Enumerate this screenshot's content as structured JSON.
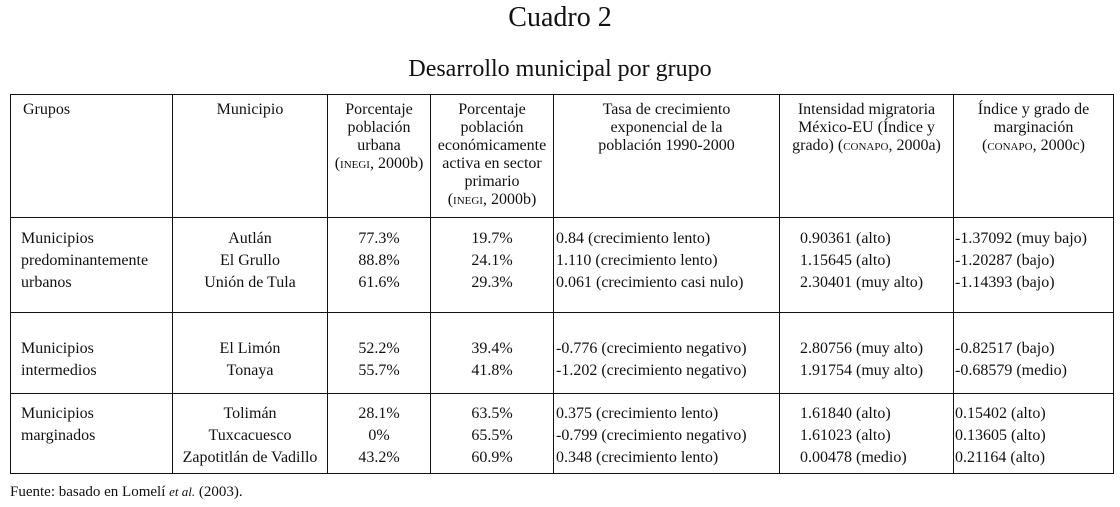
{
  "title": "Cuadro 2",
  "subtitle": "Desarrollo municipal por grupo",
  "headers": {
    "grupos": "Grupos",
    "municipio": "Municipio",
    "urbana": {
      "l1": "Porcentaje",
      "l2": "población",
      "l3": "urbana",
      "src_open": "(",
      "src": "INEGI",
      "src_rest": ", 2000b)"
    },
    "pea": {
      "l1": "Porcentaje",
      "l2": "población",
      "l3": "económicamente",
      "l4": "activa en sector",
      "l5": "primario",
      "src_open": "(",
      "src": "INEGI",
      "src_rest": ", 2000b)"
    },
    "tasa": {
      "l1": "Tasa de crecimiento",
      "l2": "exponencial de la",
      "l3": "población 1990-2000"
    },
    "intensidad": {
      "l1": "Intensidad migratoria",
      "l2": "México-EU (Índice y",
      "l3": "grado) (",
      "src": "CONAPO",
      "src_rest": ", 2000a)"
    },
    "marginacion": {
      "l1": "Índice y grado de",
      "l2": "marginación",
      "src_open": "(",
      "src": "CONAPO",
      "src_rest": ", 2000c)"
    }
  },
  "groups": [
    {
      "label_lines": [
        "Municipios",
        "predominantemente",
        "urbanos"
      ],
      "rows": [
        {
          "municipio": "Autlán",
          "urbana": "77.3%",
          "pea": "19.7%",
          "tasa": "0.84 (crecimiento lento)",
          "intensidad": "0.90361 (alto)",
          "marginacion": "-1.37092 (muy bajo)"
        },
        {
          "municipio": "El Grullo",
          "urbana": "88.8%",
          "pea": "24.1%",
          "tasa": "1.110 (crecimiento lento)",
          "intensidad": "1.15645 (alto)",
          "marginacion": "-1.20287 (bajo)"
        },
        {
          "municipio": "Unión de Tula",
          "urbana": "61.6%",
          "pea": "29.3%",
          "tasa": "0.061 (crecimiento casi nulo)",
          "intensidad": "2.30401 (muy alto)",
          "marginacion": "-1.14393 (bajo)"
        }
      ]
    },
    {
      "label_lines": [
        "Municipios",
        "intermedios"
      ],
      "rows": [
        {
          "municipio": "El Limón",
          "urbana": "52.2%",
          "pea": "39.4%",
          "tasa": "-0.776 (crecimiento negativo)",
          "intensidad": "2.80756 (muy alto)",
          "marginacion": "-0.82517 (bajo)"
        },
        {
          "municipio": "Tonaya",
          "urbana": "55.7%",
          "pea": "41.8%",
          "tasa": "-1.202 (crecimiento negativo)",
          "intensidad": "1.91754 (muy alto)",
          "marginacion": "-0.68579 (medio)"
        }
      ]
    },
    {
      "label_lines": [
        "Municipios",
        "marginados"
      ],
      "rows": [
        {
          "municipio": "Tolimán",
          "urbana": "28.1%",
          "pea": "63.5%",
          "tasa": "0.375 (crecimiento lento)",
          "intensidad": "1.61840 (alto)",
          "marginacion": "0.15402 (alto)"
        },
        {
          "municipio": "Tuxcacuesco",
          "urbana": "0%",
          "pea": "65.5%",
          "tasa": "-0.799 (crecimiento negativo)",
          "intensidad": "1.61023 (alto)",
          "marginacion": "0.13605 (alto)"
        },
        {
          "municipio": "Zapotitlán de Vadillo",
          "urbana": "43.2%",
          "pea": "60.9%",
          "tasa": "0.348 (crecimiento lento)",
          "intensidad": "0.00478 (medio)",
          "marginacion": "0.21164 (alto)"
        }
      ]
    }
  ],
  "footer": {
    "prefix": "Fuente: basado en Lomelí ",
    "etal": "et al.",
    "suffix": " (2003)."
  }
}
